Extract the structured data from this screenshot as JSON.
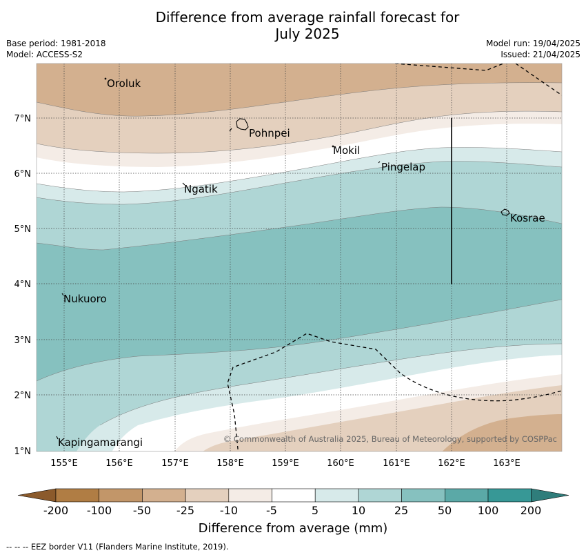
{
  "title_line1": "Difference from average rainfall forecast for",
  "title_line2": "July 2025",
  "base_period": "Base period: 1981-2018",
  "model": "Model: ACCESS-S2",
  "model_run": "Model run: 19/04/2025",
  "issued": "Issued: 21/04/2025",
  "copyright": "© Commonwealth of Australia 2025, Bureau of Meteorology, supported by COSPPac",
  "lat_labels": [
    "7°N",
    "6°N",
    "5°N",
    "4°N",
    "3°N",
    "2°N",
    "1°N"
  ],
  "lon_labels": [
    "155°E",
    "156°E",
    "157°E",
    "158°E",
    "159°E",
    "160°E",
    "161°E",
    "162°E",
    "163°E"
  ],
  "places": [
    {
      "name": "Oroluk",
      "lon": 155.75,
      "lat": 7.65
    },
    {
      "name": "Pohnpei",
      "lon": 158.3,
      "lat": 6.9
    },
    {
      "name": "Mokil",
      "lon": 159.8,
      "lat": 6.4
    },
    {
      "name": "Pingelap",
      "lon": 160.7,
      "lat": 6.2
    },
    {
      "name": "Ngatik",
      "lon": 157.15,
      "lat": 5.8
    },
    {
      "name": "Kosrae",
      "lon": 163.0,
      "lat": 5.3
    },
    {
      "name": "Nukuoro",
      "lon": 154.95,
      "lat": 3.85
    },
    {
      "name": "Kapingamarangi",
      "lon": 154.85,
      "lat": 1.1
    }
  ],
  "colorbar": {
    "tick_labels": [
      "-200",
      "-100",
      "-50",
      "-25",
      "-10",
      "-5",
      "5",
      "10",
      "25",
      "50",
      "100",
      "200"
    ],
    "colors": [
      "#b07d44",
      "#c29669",
      "#d3b08f",
      "#e4d0be",
      "#f4ece6",
      "#ffffff",
      "#d7eaea",
      "#afd6d5",
      "#86c1bf",
      "#5ba9a7",
      "#379896"
    ],
    "extend_low_color": "#8b5a2b",
    "extend_high_color": "#2f7d7b",
    "label": "Difference from average (mm)"
  },
  "legend_note": "--  --  -- EEZ border V11 (Flanders Marine Institute, 2019)."
}
